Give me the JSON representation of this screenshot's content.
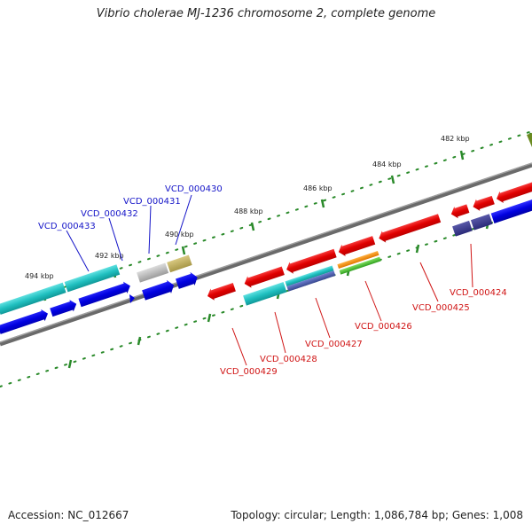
{
  "title": "Vibrio cholerae MJ-1236 chromosome 2, complete genome",
  "footer": {
    "accession": "Accession: NC_012667",
    "topology": "Topology: circular; Length: 1,086,784 bp; Genes: 1,008"
  },
  "kbp_labels": [
    "482 kbp",
    "484 kbp",
    "486 kbp",
    "488 kbp",
    "490 kbp",
    "492 kbp",
    "494 kbp"
  ],
  "gene_labels": {
    "blue": [
      "VCD_000430",
      "VCD_000431",
      "VCD_000432",
      "VCD_000433"
    ],
    "red": [
      "VCD_000424",
      "VCD_000425",
      "VCD_000426",
      "VCD_000427",
      "VCD_000428",
      "VCD_000429"
    ]
  },
  "colors": {
    "forward_strand": "#e00000",
    "reverse_strand": "#0000e0",
    "cyan_feature": "#20c8c8",
    "backbone": "#808080",
    "tick": "#2a8a2a",
    "label_blue": "#1515c8",
    "label_red": "#d01515"
  }
}
